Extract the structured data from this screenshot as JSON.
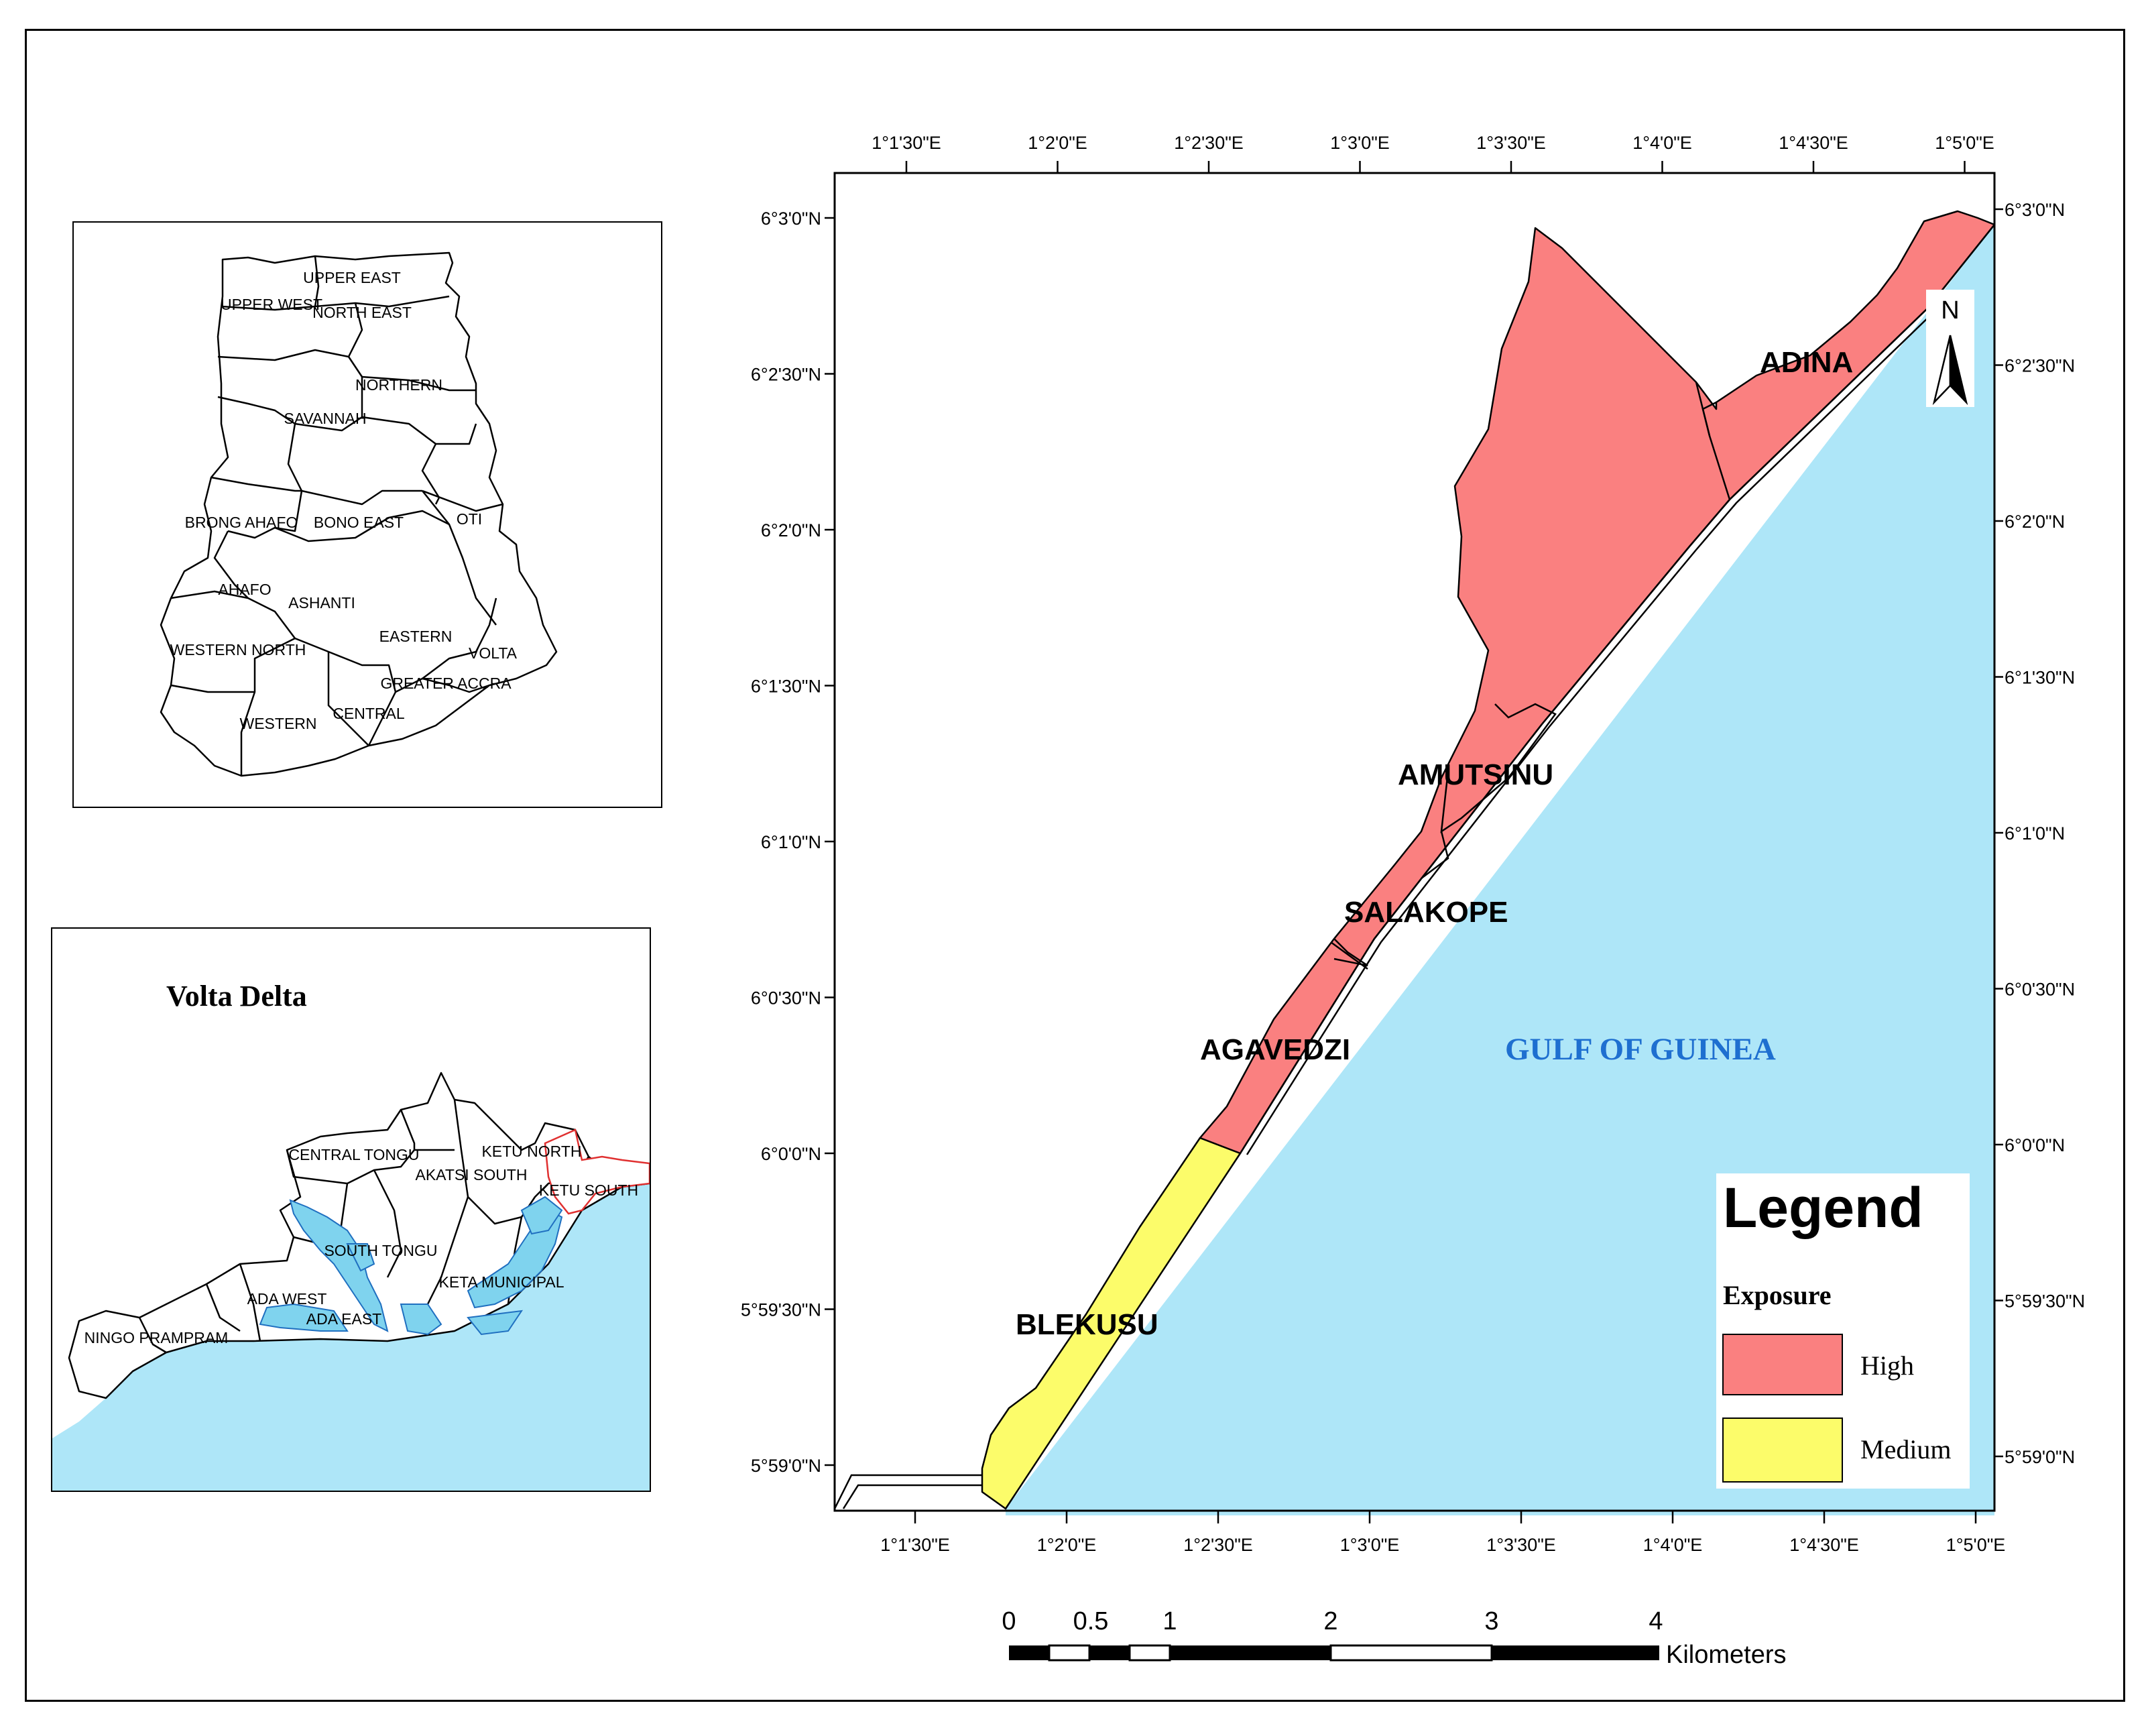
{
  "ghana_inset": {
    "regions": [
      {
        "name": "UPPER EAST"
      },
      {
        "name": "UPPER WEST"
      },
      {
        "name": "NORTH EAST"
      },
      {
        "name": "NORTHERN"
      },
      {
        "name": "SAVANNAH"
      },
      {
        "name": "BRONG AHAFO"
      },
      {
        "name": "BONO EAST"
      },
      {
        "name": "OTI"
      },
      {
        "name": "AHAFO"
      },
      {
        "name": "ASHANTI"
      },
      {
        "name": "EASTERN"
      },
      {
        "name": "WESTERN NORTH"
      },
      {
        "name": "VOLTA"
      },
      {
        "name": "GREATER ACCRA"
      },
      {
        "name": "CENTRAL"
      },
      {
        "name": "WESTERN"
      }
    ]
  },
  "delta_inset": {
    "title": "Volta Delta",
    "districts": [
      {
        "name": "CENTRAL TONGU"
      },
      {
        "name": "KETU NORTH"
      },
      {
        "name": "AKATSI SOUTH"
      },
      {
        "name": "KETU SOUTH"
      },
      {
        "name": "SOUTH TONGU"
      },
      {
        "name": "ADA WEST"
      },
      {
        "name": "KETA MUNICIPAL"
      },
      {
        "name": "ADA EAST"
      },
      {
        "name": "NINGO PRAMPRAM"
      }
    ],
    "colors": {
      "water": "#aee6f8",
      "lagoon": "#7fd3ee",
      "highlight": "#e03030"
    }
  },
  "main_map": {
    "top_lon_labels": [
      "1°1'30\"E",
      "1°2'0\"E",
      "1°2'30\"E",
      "1°3'0\"E",
      "1°3'30\"E",
      "1°4'0\"E",
      "1°4'30\"E",
      "1°5'0\"E"
    ],
    "bottom_lon_labels": [
      "1°1'30\"E",
      "1°2'0\"E",
      "1°2'30\"E",
      "1°3'0\"E",
      "1°3'30\"E",
      "1°4'0\"E",
      "1°4'30\"E",
      "1°5'0\"E"
    ],
    "left_lat_labels": [
      "6°3'0\"N",
      "6°2'30\"N",
      "6°2'0\"N",
      "6°1'30\"N",
      "6°1'0\"N",
      "6°0'30\"N",
      "6°0'0\"N",
      "5°59'30\"N",
      "5°59'0\"N"
    ],
    "right_lat_labels": [
      "6°3'0\"N",
      "6°2'30\"N",
      "6°2'0\"N",
      "6°1'30\"N",
      "6°1'0\"N",
      "6°0'30\"N",
      "6°0'0\"N",
      "5°59'30\"N",
      "5°59'0\"N"
    ],
    "places": [
      {
        "name": "ADINA",
        "exposure": "High"
      },
      {
        "name": "AMUTSINU",
        "exposure": "High"
      },
      {
        "name": "SALAKOPE",
        "exposure": "High"
      },
      {
        "name": "AGAVEDZI",
        "exposure": "High"
      },
      {
        "name": "BLEKUSU",
        "exposure": "Medium"
      }
    ],
    "sea_label": "GULF OF GUINEA",
    "north_arrow": "N",
    "colors": {
      "sea": "#aee6f8",
      "high": "#fa8080",
      "medium": "#fcfc6a",
      "sea_label": "#1e6fd0"
    }
  },
  "legend": {
    "title": "Legend",
    "subtitle": "Exposure",
    "items": [
      {
        "label": "High",
        "color": "#fa8080"
      },
      {
        "label": "Medium",
        "color": "#fcfc6a"
      }
    ]
  },
  "scale_bar": {
    "ticks": [
      "0",
      "0.5",
      "1",
      "2",
      "3",
      "4"
    ],
    "unit": "Kilometers"
  }
}
